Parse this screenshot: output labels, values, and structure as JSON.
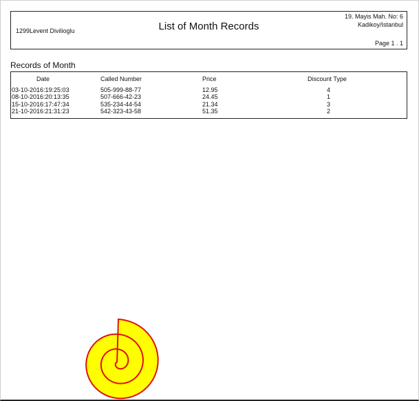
{
  "header": {
    "user": "1299Levent Divilioglu",
    "title": "List of Month Records",
    "address_line1": "19. Mayis Mah. No: 6",
    "address_line2": "Kadikoy/Istanbul",
    "page": "Page 1 . 1"
  },
  "section_title": "Records of Month",
  "table": {
    "columns": [
      "Date",
      "Called Number",
      "Price",
      "Discount Type"
    ],
    "rows": [
      [
        "03-10-2016:19:25:03",
        "505-999-88-77",
        "12.95",
        "4"
      ],
      [
        "08-10-2016:20:13:35",
        "507-666-42-23",
        "24.45",
        "1"
      ],
      [
        "15-10-2016:17:47:34",
        "535-234-44-54",
        "21.34",
        "3"
      ],
      [
        "21-10-2016:21:31:23",
        "542-323-43-58",
        "51.35",
        "2"
      ]
    ]
  },
  "spiral": {
    "fill": "#ffff00",
    "stroke": "#dd1111"
  }
}
